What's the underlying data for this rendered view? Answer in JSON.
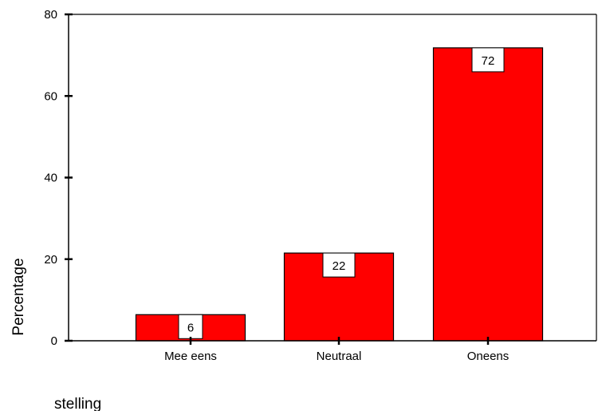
{
  "chart_data": {
    "type": "bar",
    "title": "",
    "xlabel": "stelling",
    "ylabel": "Percentage",
    "categories": [
      "Mee eens",
      "Neutraal",
      "Oneens"
    ],
    "values": [
      6.4,
      21.5,
      71.8
    ],
    "data_labels": [
      "6",
      "22",
      "72"
    ],
    "ylim": [
      0,
      80
    ],
    "yticks": [
      0,
      20,
      40,
      60,
      80
    ],
    "grid": false,
    "legend": "none",
    "bar_color": "#ff0000",
    "bar_edge_color": "#000000"
  }
}
